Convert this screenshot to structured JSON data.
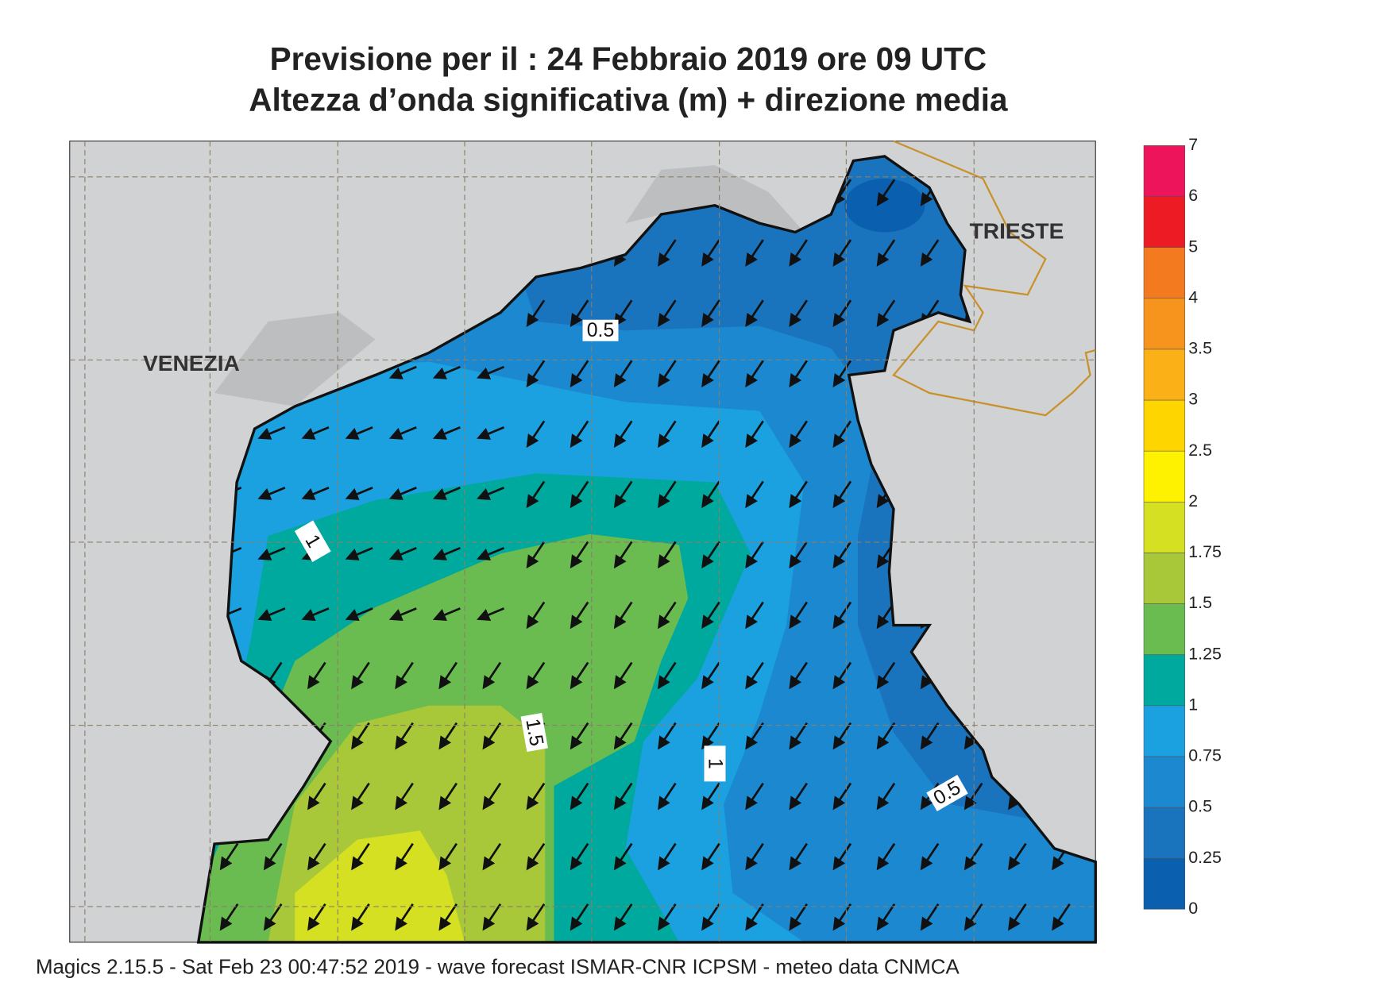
{
  "map": {
    "title": [
      "Previsione per il  :  24  Febbraio 2019   ore 09 UTC",
      "Altezza d’onda significativa (m) + direzione media"
    ],
    "cities": [
      "VENEZIA",
      "TRIESTE"
    ],
    "contour_labels": [
      "0.5",
      "1",
      "1.5",
      "1",
      "0.5"
    ],
    "colorbar": {
      "levels": [
        0,
        0.25,
        0.5,
        0.75,
        1,
        1.25,
        1.5,
        1.75,
        2,
        2.5,
        3,
        3.5,
        4,
        5,
        6,
        7
      ],
      "colors": [
        "#0a5fae",
        "#1a74bd",
        "#1b88cf",
        "#1ba0e0",
        "#00a99d",
        "#6abb50",
        "#a8c83a",
        "#d4e021",
        "#fff200",
        "#ffd500",
        "#fbb017",
        "#f7941d",
        "#f47a20",
        "#ed1c24",
        "#ed145b"
      ]
    },
    "footer": "Magics 2.15.5 - Sat Feb 23 00:47:52 2019 - wave forecast  ISMAR-CNR  ICPSM - meteo data   CNMCA"
  }
}
